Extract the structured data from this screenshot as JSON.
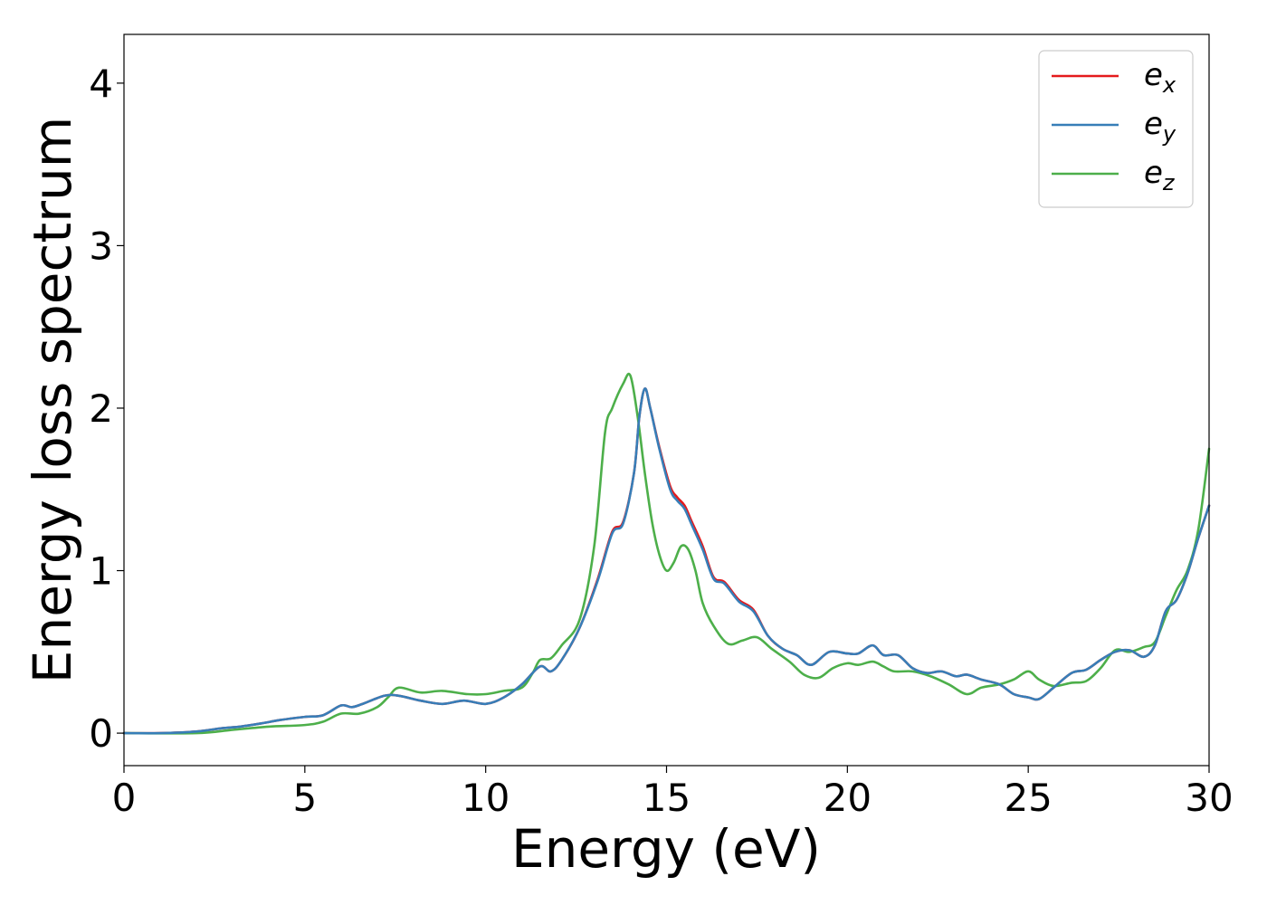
{
  "chart_data": {
    "type": "line",
    "title": "",
    "xlabel": "Energy (eV)",
    "ylabel": "Energy loss spectrum",
    "xlim": [
      0,
      30
    ],
    "ylim": [
      -0.2,
      4.3
    ],
    "xticks": [
      0,
      5,
      10,
      15,
      20,
      25,
      30
    ],
    "yticks": [
      0,
      1,
      2,
      3,
      4
    ],
    "grid": false,
    "legend_position": "top-right",
    "series": [
      {
        "name": "e",
        "subscript": "x",
        "color": "#e41a1c",
        "x": [
          0,
          1,
          2,
          2.7,
          3.2,
          3.8,
          4.3,
          5,
          5.5,
          6,
          6.3,
          6.6,
          7.2,
          7.6,
          8.2,
          8.8,
          9.4,
          10,
          10.5,
          11,
          11.5,
          11.8,
          12.1,
          12.6,
          13.1,
          13.5,
          13.8,
          14.1,
          14.25,
          14.4,
          14.55,
          14.8,
          15.1,
          15.3,
          15.5,
          15.7,
          16,
          16.3,
          16.6,
          17,
          17.4,
          17.8,
          18.2,
          18.6,
          19,
          19.5,
          20,
          20.3,
          20.7,
          21,
          21.4,
          21.8,
          22.2,
          22.6,
          23,
          23.3,
          23.7,
          24.2,
          24.6,
          25,
          25.3,
          25.7,
          26.2,
          26.6,
          27,
          27.4,
          27.8,
          28.2,
          28.5,
          28.8,
          29.1,
          29.4,
          29.7,
          30
        ],
        "y": [
          0,
          0,
          0.01,
          0.03,
          0.04,
          0.06,
          0.08,
          0.1,
          0.11,
          0.17,
          0.16,
          0.18,
          0.23,
          0.23,
          0.2,
          0.18,
          0.2,
          0.18,
          0.22,
          0.3,
          0.41,
          0.38,
          0.45,
          0.65,
          0.95,
          1.24,
          1.3,
          1.6,
          1.95,
          2.12,
          2.0,
          1.76,
          1.52,
          1.45,
          1.4,
          1.3,
          1.15,
          0.96,
          0.93,
          0.82,
          0.76,
          0.6,
          0.52,
          0.48,
          0.42,
          0.5,
          0.49,
          0.49,
          0.54,
          0.48,
          0.48,
          0.4,
          0.37,
          0.38,
          0.35,
          0.36,
          0.33,
          0.3,
          0.24,
          0.22,
          0.21,
          0.28,
          0.37,
          0.39,
          0.45,
          0.5,
          0.51,
          0.47,
          0.54,
          0.75,
          0.82,
          0.98,
          1.2,
          1.4
        ]
      },
      {
        "name": "e",
        "subscript": "y",
        "color": "#377eb8",
        "x": [
          0,
          1,
          2,
          2.7,
          3.2,
          3.8,
          4.3,
          5,
          5.5,
          6,
          6.3,
          6.6,
          7.2,
          7.6,
          8.2,
          8.8,
          9.4,
          10,
          10.5,
          11,
          11.5,
          11.8,
          12.1,
          12.6,
          13.1,
          13.5,
          13.8,
          14.1,
          14.25,
          14.4,
          14.55,
          14.8,
          15.1,
          15.3,
          15.5,
          15.7,
          16,
          16.3,
          16.6,
          17,
          17.4,
          17.8,
          18.2,
          18.6,
          19,
          19.5,
          20,
          20.3,
          20.7,
          21,
          21.4,
          21.8,
          22.2,
          22.6,
          23,
          23.3,
          23.7,
          24.2,
          24.6,
          25,
          25.3,
          25.7,
          26.2,
          26.6,
          27,
          27.4,
          27.8,
          28.2,
          28.5,
          28.8,
          29.1,
          29.4,
          29.7,
          30
        ],
        "y": [
          0,
          0,
          0.01,
          0.03,
          0.04,
          0.06,
          0.08,
          0.1,
          0.11,
          0.17,
          0.16,
          0.18,
          0.23,
          0.23,
          0.2,
          0.18,
          0.2,
          0.18,
          0.22,
          0.3,
          0.41,
          0.38,
          0.45,
          0.65,
          0.94,
          1.23,
          1.29,
          1.6,
          1.95,
          2.12,
          2.0,
          1.75,
          1.5,
          1.43,
          1.38,
          1.28,
          1.13,
          0.95,
          0.92,
          0.81,
          0.75,
          0.6,
          0.52,
          0.48,
          0.42,
          0.5,
          0.49,
          0.49,
          0.54,
          0.48,
          0.48,
          0.4,
          0.37,
          0.38,
          0.35,
          0.36,
          0.33,
          0.3,
          0.24,
          0.22,
          0.21,
          0.28,
          0.37,
          0.39,
          0.45,
          0.5,
          0.51,
          0.47,
          0.54,
          0.75,
          0.82,
          0.98,
          1.2,
          1.4
        ]
      },
      {
        "name": "e",
        "subscript": "z",
        "color": "#4daf4a",
        "x": [
          0,
          2,
          3,
          4,
          5,
          5.5,
          6,
          6.5,
          7,
          7.3,
          7.6,
          8.2,
          8.8,
          9.5,
          10,
          10.5,
          11,
          11.3,
          11.5,
          11.8,
          12.1,
          12.6,
          13,
          13.3,
          13.5,
          13.8,
          14,
          14.2,
          14.4,
          14.6,
          14.8,
          15,
          15.2,
          15.4,
          15.6,
          15.8,
          16,
          16.3,
          16.7,
          17.1,
          17.5,
          17.9,
          18.4,
          18.8,
          19.2,
          19.6,
          20,
          20.3,
          20.7,
          21,
          21.3,
          21.8,
          22.3,
          22.8,
          23.3,
          23.7,
          24.2,
          24.6,
          25,
          25.3,
          25.7,
          26.2,
          26.6,
          27,
          27.4,
          27.8,
          28.2,
          28.5,
          28.8,
          29.1,
          29.4,
          29.7,
          30
        ],
        "y": [
          0,
          0,
          0.02,
          0.04,
          0.05,
          0.07,
          0.12,
          0.12,
          0.16,
          0.22,
          0.28,
          0.25,
          0.26,
          0.24,
          0.24,
          0.26,
          0.28,
          0.37,
          0.45,
          0.46,
          0.54,
          0.7,
          1.15,
          1.85,
          2.0,
          2.15,
          2.2,
          1.95,
          1.6,
          1.3,
          1.1,
          1.0,
          1.05,
          1.15,
          1.13,
          1.0,
          0.8,
          0.66,
          0.55,
          0.57,
          0.59,
          0.52,
          0.44,
          0.36,
          0.34,
          0.4,
          0.43,
          0.42,
          0.44,
          0.41,
          0.38,
          0.38,
          0.35,
          0.3,
          0.24,
          0.28,
          0.3,
          0.33,
          0.38,
          0.33,
          0.29,
          0.31,
          0.32,
          0.4,
          0.51,
          0.5,
          0.53,
          0.56,
          0.72,
          0.88,
          1.0,
          1.25,
          1.75
        ]
      }
    ]
  }
}
